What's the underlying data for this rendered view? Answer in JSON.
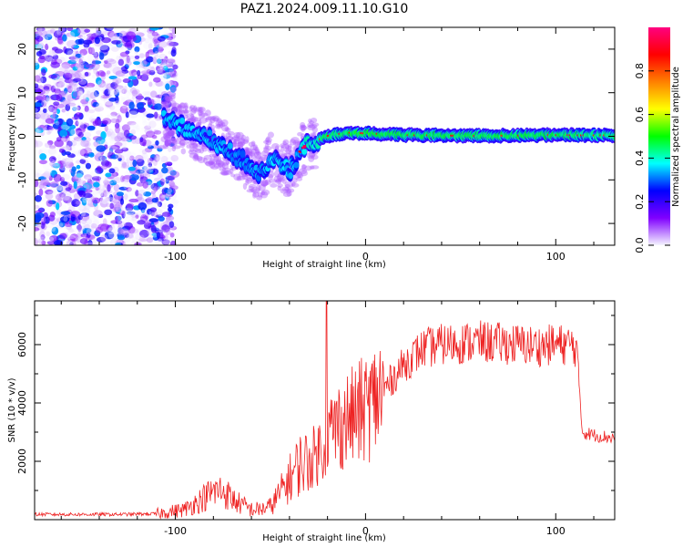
{
  "figure": {
    "title": "PAZ1.2024.009.11.10.G10"
  },
  "chart_data": [
    {
      "type": "heatmap",
      "title": "PAZ1.2024.009.11.10.G10",
      "xlabel": "Height of straight line (km)",
      "ylabel": "Frequency (Hz)",
      "xlim": [
        -174,
        131
      ],
      "ylim": [
        -25,
        25
      ],
      "x_ticks": [
        -100,
        0,
        100
      ],
      "y_ticks": [
        -20,
        -10,
        0,
        10,
        20
      ],
      "colorbar": {
        "label": "Normalized spectral amplitude",
        "range": [
          0,
          1
        ],
        "ticks": [
          "0.0",
          "0.2",
          "0.4",
          "0.6",
          "0.8"
        ],
        "colors": [
          "#f5f5ff",
          "#8000ff",
          "#0000ff",
          "#00ffff",
          "#00ff00",
          "#ffff00",
          "#ff8000",
          "#ff0000",
          "#ff0080"
        ]
      },
      "ridge": {
        "x": [
          -106,
          -100,
          -90,
          -80,
          -70,
          -60,
          -55,
          -50,
          -45,
          -40,
          -35,
          -30,
          -25,
          -20,
          -10,
          0,
          10,
          20,
          40,
          60,
          80,
          100,
          120,
          131
        ],
        "freq": [
          4,
          3,
          1,
          -1,
          -4,
          -7,
          -9,
          -5,
          -6,
          -8,
          -4,
          -1.5,
          -1,
          0,
          0.8,
          0.7,
          0.5,
          0.3,
          0.2,
          0.1,
          0.2,
          0.3,
          0.2,
          0.2
        ],
        "amplitude": [
          0.3,
          0.3,
          0.3,
          0.3,
          0.25,
          0.25,
          0.25,
          0.3,
          0.3,
          0.3,
          0.3,
          0.4,
          0.4,
          0.5,
          0.5,
          0.55,
          0.5,
          0.5,
          0.5,
          0.5,
          0.5,
          0.5,
          0.45,
          0.45
        ]
      },
      "noise_region_x": [
        -174,
        -106
      ],
      "grid": false
    },
    {
      "type": "line",
      "title": "",
      "xlabel": "Height of straight line (km)",
      "ylabel": "SNR (10 * v/v)",
      "xlim": [
        -174,
        131
      ],
      "ylim": [
        0,
        7500
      ],
      "x_ticks": [
        -100,
        0,
        100
      ],
      "y_ticks": [
        2000,
        4000,
        6000
      ],
      "color": "#ee2222",
      "series": [
        {
          "x": [
            -174,
            -130,
            -110,
            -95,
            -90,
            -85,
            -80,
            -75,
            -70,
            -65,
            -60,
            -55,
            -50,
            -45,
            -40,
            -35,
            -30,
            -25,
            -20,
            -15,
            -10,
            -5,
            0,
            5,
            10,
            15,
            20,
            25,
            30,
            40,
            50,
            60,
            70,
            80,
            90,
            100,
            108,
            111,
            114,
            120,
            131
          ],
          "y": [
            180,
            180,
            200,
            350,
            550,
            750,
            950,
            1000,
            700,
            500,
            350,
            350,
            450,
            900,
            1400,
            1900,
            2000,
            2300,
            2900,
            3200,
            3400,
            3600,
            3800,
            4100,
            4500,
            4900,
            5300,
            5600,
            5850,
            6000,
            6050,
            6100,
            6050,
            6000,
            5950,
            6000,
            6000,
            5900,
            3000,
            2900,
            2800
          ]
        }
      ],
      "spike": {
        "x": -20.5,
        "y": 7500
      },
      "grid": false
    }
  ]
}
